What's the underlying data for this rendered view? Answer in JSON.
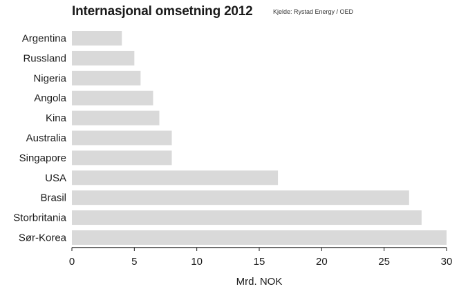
{
  "header": {
    "title": "Internasjonal omsetning 2012",
    "source": "Kjelde: Rystad Energy / OED"
  },
  "colors": {
    "bar": "#d9d9d9",
    "axis": "#1a1a1a",
    "text": "#1a1a1a"
  },
  "chart_data": {
    "type": "bar",
    "orientation": "horizontal",
    "title": "Internasjonal omsetning 2012",
    "xlabel": "Mrd. NOK",
    "ylabel": "",
    "categories": [
      "Argentina",
      "Russland",
      "Nigeria",
      "Angola",
      "Kina",
      "Australia",
      "Singapore",
      "USA",
      "Brasil",
      "Storbritania",
      "Sør-Korea"
    ],
    "values": [
      4,
      5,
      5.5,
      6.5,
      7,
      8,
      8,
      16.5,
      27,
      28,
      30
    ],
    "xlim": [
      0,
      30
    ],
    "xticks": [
      "0",
      "5",
      "10",
      "15",
      "20",
      "25",
      "30"
    ],
    "grid": false,
    "legend": "none"
  }
}
